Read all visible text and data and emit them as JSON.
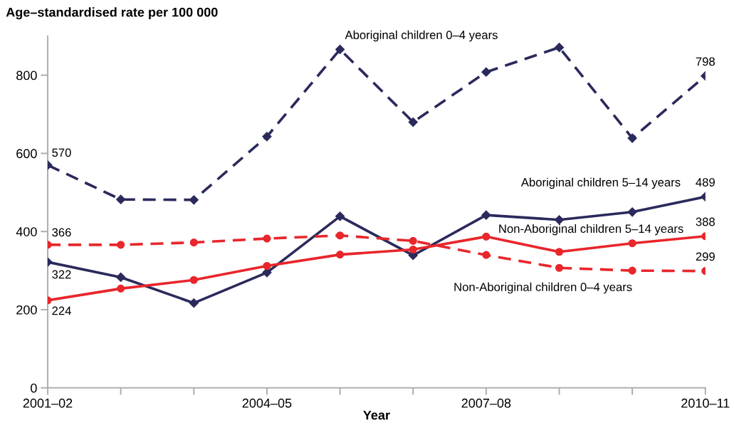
{
  "chart_data": {
    "type": "line",
    "ylabel": "Age–standardised rate per 100 000",
    "xlabel": "Year",
    "categories": [
      "2001–02",
      null,
      null,
      "2004–05",
      null,
      null,
      "2007–08",
      null,
      null,
      "2010–11"
    ],
    "ylim": [
      0,
      900
    ],
    "yticks": [
      0,
      200,
      400,
      600,
      800
    ],
    "grid": false,
    "legend": false,
    "series": [
      {
        "name": "Aboriginal children 0–4 years",
        "color": "#2b2a5c",
        "marker": "diamond",
        "line_style": "dashed",
        "values": [
          570,
          482,
          481,
          643,
          866,
          680,
          808,
          871,
          639,
          798
        ],
        "value_labels": [
          "570",
          null,
          null,
          null,
          null,
          null,
          null,
          null,
          null,
          "798"
        ]
      },
      {
        "name": "Aboriginal children 5–14 years",
        "color": "#2b2a5c",
        "marker": "diamond",
        "line_style": "solid",
        "values": [
          322,
          283,
          217,
          295,
          439,
          339,
          442,
          430,
          450,
          489
        ],
        "value_labels": [
          "322",
          null,
          null,
          null,
          null,
          null,
          null,
          null,
          null,
          "489"
        ]
      },
      {
        "name": "Non-Aboriginal children 5–14 years",
        "color": "#e8262b",
        "marker": "circle",
        "line_style": "solid",
        "values": [
          224,
          254,
          276,
          312,
          341,
          354,
          387,
          348,
          370,
          388
        ],
        "value_labels": [
          "224",
          null,
          null,
          null,
          null,
          null,
          null,
          null,
          null,
          "388"
        ]
      },
      {
        "name": "Non-Aboriginal children 0–4 years",
        "color": "#e8262b",
        "marker": "circle",
        "line_style": "dashed",
        "values": [
          366,
          366,
          372,
          382,
          390,
          376,
          340,
          307,
          300,
          299
        ],
        "value_labels": [
          "366",
          null,
          null,
          null,
          null,
          null,
          null,
          null,
          null,
          "299"
        ]
      }
    ]
  }
}
